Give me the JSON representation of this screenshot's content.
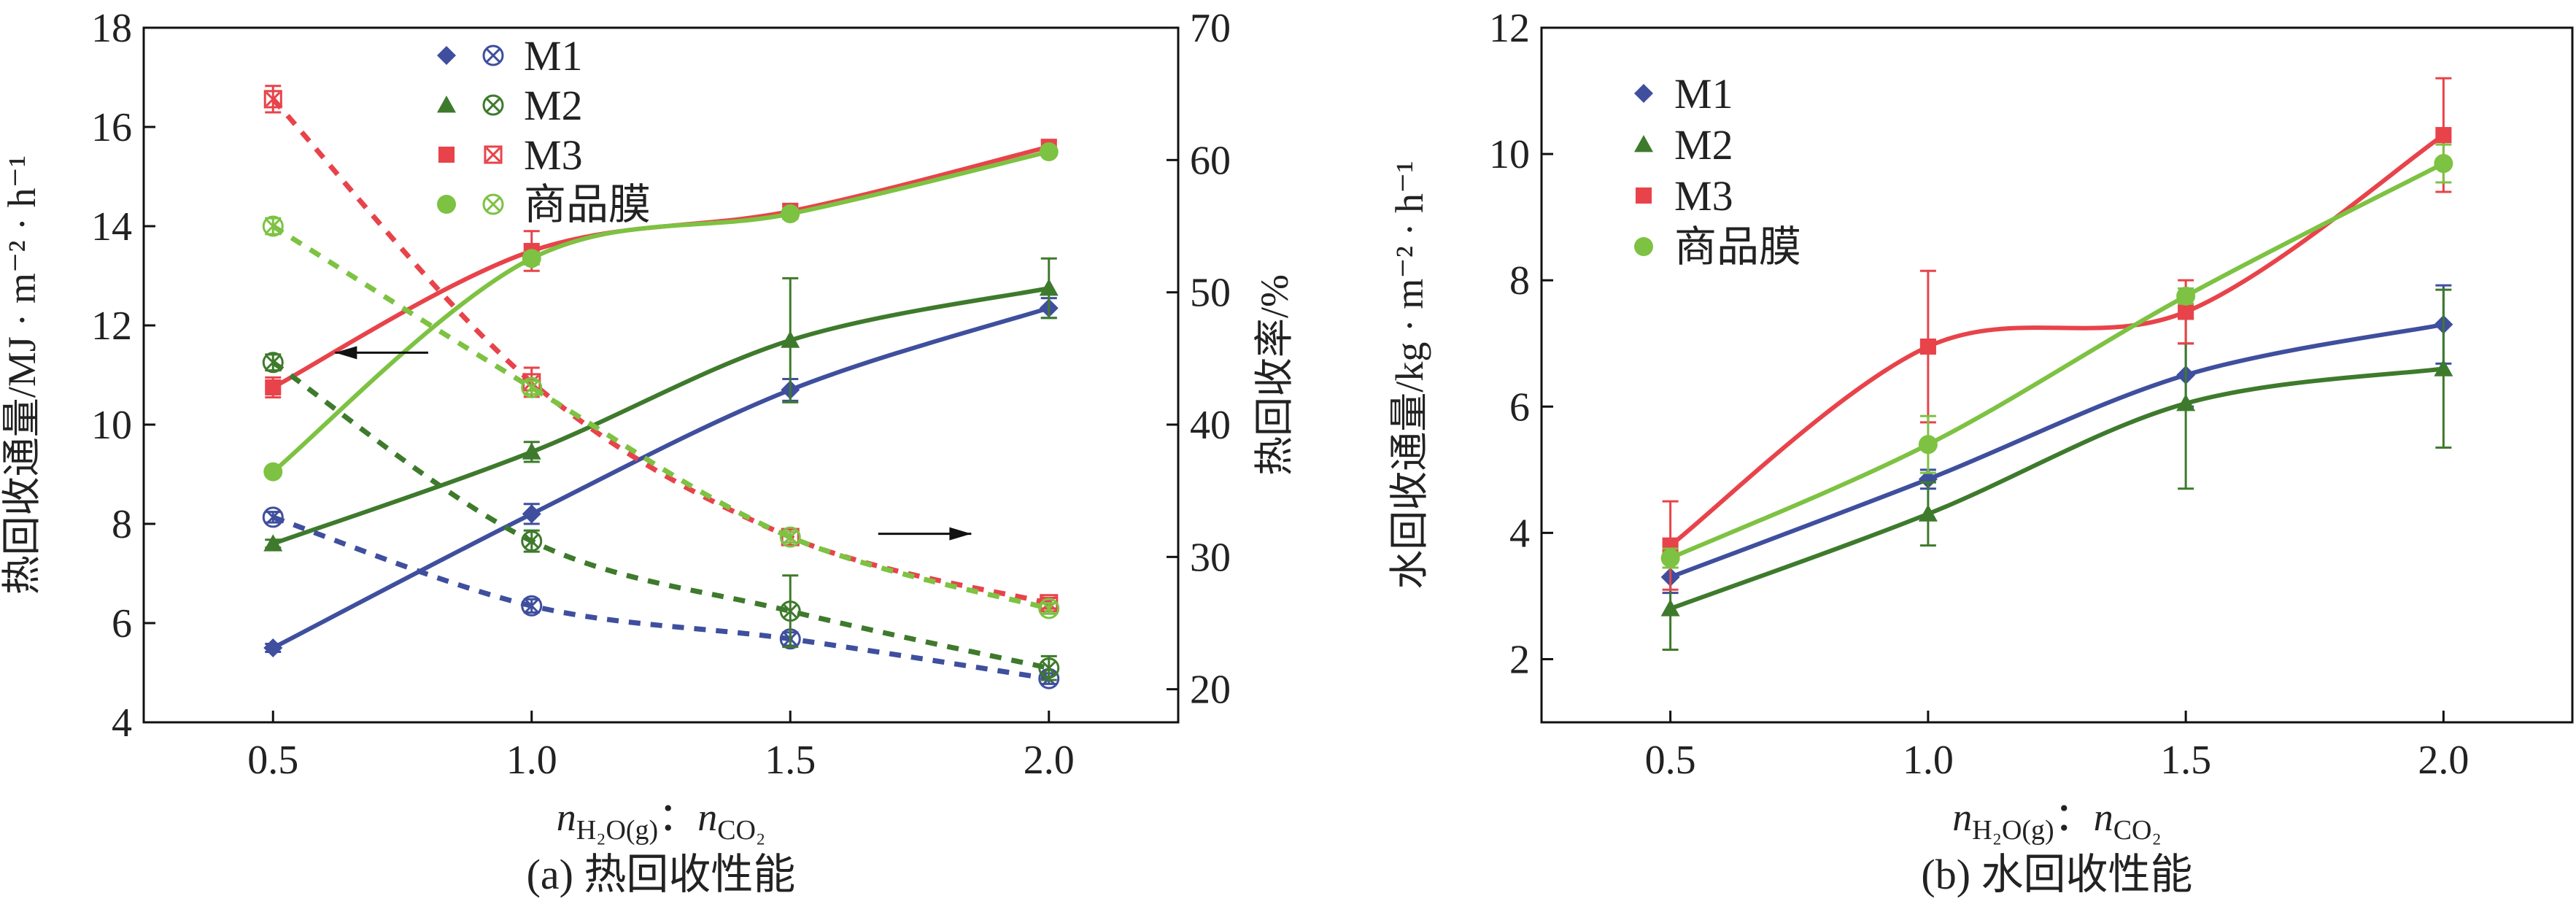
{
  "chart_data": [
    {
      "type": "line",
      "title": "(a) 热回收性能",
      "xlabel": {
        "n1": "n",
        "sub1": "H₂O(g)",
        "sep": "：",
        "n2": "n",
        "sub2": "CO₂"
      },
      "ylabel": "热回收通量/MJ · m⁻² · h⁻¹",
      "y2label": "热回收率/%",
      "x": [
        0.5,
        1.0,
        1.5,
        2.0
      ],
      "xticks": [
        "0.5",
        "1.0",
        "1.5",
        "2.0"
      ],
      "xlim": [
        0.25,
        2.25
      ],
      "ylim": [
        4,
        18
      ],
      "yticks": [
        "4",
        "6",
        "8",
        "10",
        "12",
        "14",
        "16",
        "18"
      ],
      "y2lim": [
        17.5,
        70
      ],
      "y2ticks": [
        "20",
        "30",
        "40",
        "50",
        "60",
        "70"
      ],
      "legend": {
        "position": "top-center",
        "entries": [
          "M1",
          "M2",
          "M3",
          "商品膜"
        ]
      },
      "series": [
        {
          "name": "M1",
          "axis": "left",
          "style": "solid",
          "marker": "diamond",
          "color": "#3f4f9e",
          "values": [
            5.5,
            8.2,
            10.7,
            12.35
          ],
          "errors": [
            0.08,
            0.2,
            0.22,
            0.2
          ]
        },
        {
          "name": "M2",
          "axis": "left",
          "style": "solid",
          "marker": "triangle",
          "color": "#3e7a2c",
          "values": [
            7.6,
            9.45,
            11.7,
            12.75
          ],
          "errors": [
            0.08,
            0.2,
            1.25,
            0.6
          ]
        },
        {
          "name": "M3",
          "axis": "left",
          "style": "solid",
          "marker": "square",
          "color": "#e8434a",
          "values": [
            10.75,
            13.5,
            14.3,
            15.6
          ],
          "errors": [
            0.2,
            0.4,
            0.15,
            0.12
          ]
        },
        {
          "name": "商品膜",
          "axis": "left",
          "style": "solid",
          "marker": "circle",
          "color": "#7dc242",
          "values": [
            9.05,
            13.35,
            14.25,
            15.5
          ],
          "errors": [
            0.05,
            0.12,
            0.1,
            0.08
          ]
        },
        {
          "name": "M1",
          "axis": "right",
          "style": "dashed",
          "marker": "circle-x",
          "color": "#3f4f9e",
          "values": [
            33.0,
            26.3,
            23.8,
            20.8
          ],
          "errors": [
            0.4,
            0.5,
            0.5,
            0.4
          ]
        },
        {
          "name": "M2",
          "axis": "right",
          "style": "dashed",
          "marker": "circle-x",
          "color": "#3e7a2c",
          "values": [
            44.7,
            31.2,
            25.9,
            21.6
          ],
          "errors": [
            0.6,
            0.8,
            2.7,
            0.9
          ]
        },
        {
          "name": "M3",
          "axis": "right",
          "style": "dashed",
          "marker": "square-x",
          "color": "#e8434a",
          "values": [
            64.6,
            43.2,
            31.5,
            26.5
          ],
          "errors": [
            1.0,
            1.1,
            0.6,
            0.4
          ]
        },
        {
          "name": "商品膜",
          "axis": "right",
          "style": "dashed",
          "marker": "circle-x",
          "color": "#7dc242",
          "values": [
            55.0,
            42.8,
            31.5,
            26.1
          ],
          "errors": [
            0.6,
            0.5,
            0.4,
            0.4
          ]
        }
      ]
    },
    {
      "type": "line",
      "title": "(b) 水回收性能",
      "xlabel": {
        "n1": "n",
        "sub1": "H₂O(g)",
        "sep": "：",
        "n2": "n",
        "sub2": "CO₂"
      },
      "ylabel": "水回收通量/kg · m⁻² · h⁻¹",
      "x": [
        0.5,
        1.0,
        1.5,
        2.0
      ],
      "xticks": [
        "0.5",
        "1.0",
        "1.5",
        "2.0"
      ],
      "xlim": [
        0.25,
        2.25
      ],
      "ylim": [
        1,
        12
      ],
      "yticks": [
        "2",
        "4",
        "6",
        "8",
        "10",
        "12"
      ],
      "legend": {
        "position": "top-left",
        "entries": [
          "M1",
          "M2",
          "M3",
          "商品膜"
        ]
      },
      "series": [
        {
          "name": "M1",
          "axis": "left",
          "style": "solid",
          "marker": "diamond",
          "color": "#3f4f9e",
          "values": [
            3.3,
            4.85,
            6.5,
            7.3
          ],
          "errors": [
            0.25,
            0.15,
            0.5,
            0.62
          ]
        },
        {
          "name": "M2",
          "axis": "left",
          "style": "solid",
          "marker": "triangle",
          "color": "#3e7a2c",
          "values": [
            2.8,
            4.3,
            6.05,
            6.6
          ],
          "errors": [
            0.65,
            0.5,
            1.35,
            1.25
          ]
        },
        {
          "name": "M3",
          "axis": "left",
          "style": "solid",
          "marker": "square",
          "color": "#e8434a",
          "values": [
            3.8,
            6.95,
            7.5,
            10.3
          ],
          "errors": [
            0.7,
            1.2,
            0.5,
            0.9
          ]
        },
        {
          "name": "商品膜",
          "axis": "left",
          "style": "solid",
          "marker": "circle",
          "color": "#7dc242",
          "values": [
            3.6,
            5.4,
            7.75,
            9.85
          ],
          "errors": [
            0.15,
            0.45,
            0.12,
            0.3
          ]
        }
      ]
    }
  ]
}
